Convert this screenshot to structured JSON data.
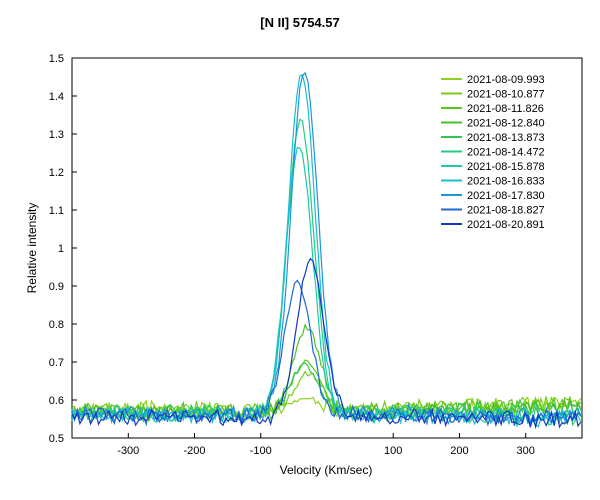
{
  "chart_data": {
    "type": "line",
    "title": "[N II] 5754.57",
    "xlabel": "Velocity (Km/sec)",
    "ylabel": "Relative intensity",
    "xlim": [
      -385,
      385
    ],
    "ylim": [
      0.5,
      1.5
    ],
    "x_ticks": [
      -300,
      -200,
      -100,
      100,
      200,
      300
    ],
    "y_ticks": [
      0.5,
      0.6,
      0.7,
      0.8,
      0.9,
      1,
      1.1,
      1.2,
      1.3,
      1.4,
      1.5
    ],
    "legend_position": "top-right",
    "series": [
      {
        "name": "2021-08-09.993",
        "color": "#8ad21c",
        "peak": 0.6,
        "center": -30,
        "baseline": 0.575
      },
      {
        "name": "2021-08-10.877",
        "color": "#76cc1a",
        "peak": 0.67,
        "center": -28,
        "baseline": 0.575
      },
      {
        "name": "2021-08-11.826",
        "color": "#5ec41e",
        "peak": 0.7,
        "center": -32,
        "baseline": 0.57
      },
      {
        "name": "2021-08-12.840",
        "color": "#46c02a",
        "peak": 0.79,
        "center": -30,
        "baseline": 0.57
      },
      {
        "name": "2021-08-13.873",
        "color": "#2ec850",
        "peak": 0.69,
        "center": -34,
        "baseline": 0.565
      },
      {
        "name": "2021-08-14.472",
        "color": "#22cc80",
        "peak": 1.34,
        "center": -40,
        "baseline": 0.565
      },
      {
        "name": "2021-08-15.878",
        "color": "#1ccaa8",
        "peak": 1.27,
        "center": -42,
        "baseline": 0.56
      },
      {
        "name": "2021-08-16.833",
        "color": "#1abcd0",
        "peak": 1.46,
        "center": -38,
        "baseline": 0.56
      },
      {
        "name": "2021-08-17.830",
        "color": "#1a96dc",
        "peak": 1.47,
        "center": -34,
        "baseline": 0.565
      },
      {
        "name": "2021-08-18.827",
        "color": "#1a6ad2",
        "peak": 0.91,
        "center": -44,
        "baseline": 0.56
      },
      {
        "name": "2021-08-20.891",
        "color": "#1438c0",
        "peak": 0.97,
        "center": -25,
        "baseline": 0.555
      }
    ]
  }
}
